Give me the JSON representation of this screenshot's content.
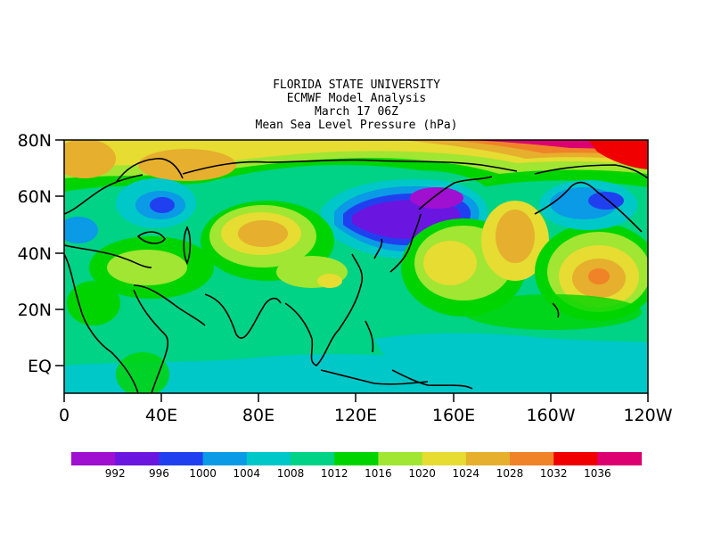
{
  "title": {
    "line1": "FLORIDA STATE UNIVERSITY",
    "line2": "ECMWF Model Analysis",
    "line3": "March 17 06Z",
    "line4": "Mean Sea Level Pressure (hPa)"
  },
  "axes": {
    "x_ticks": [
      "0",
      "40E",
      "80E",
      "120E",
      "160E",
      "160W",
      "120W"
    ],
    "y_ticks": [
      "80N",
      "60N",
      "40N",
      "20N",
      "EQ"
    ]
  },
  "colorbar": {
    "labels": [
      "992",
      "996",
      "1000",
      "1004",
      "1008",
      "1012",
      "1016",
      "1020",
      "1024",
      "1028",
      "1032",
      "1036"
    ],
    "colors": [
      "#a010d0",
      "#6a16e0",
      "#2040f0",
      "#0a9ae6",
      "#00c8c8",
      "#00d286",
      "#00d400",
      "#a0e632",
      "#e6dc32",
      "#e6af2d",
      "#f08228",
      "#f00000",
      "#dc0070"
    ]
  },
  "map": {
    "background": "#00d286",
    "coast_color": "#000000"
  }
}
